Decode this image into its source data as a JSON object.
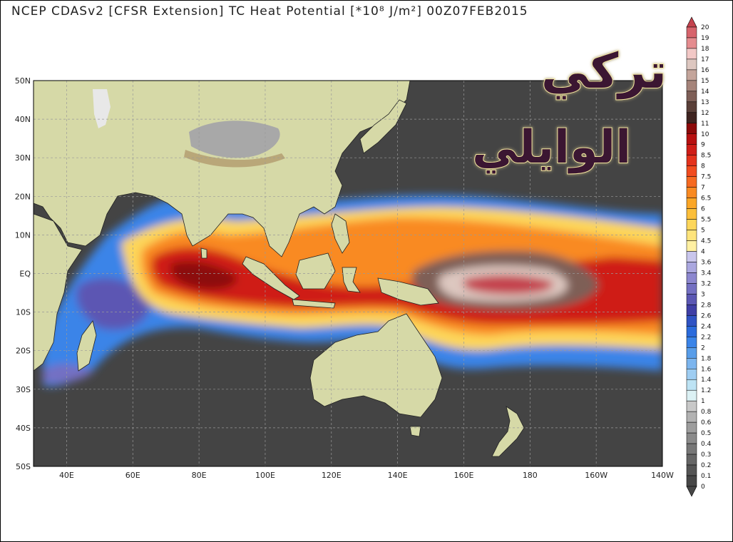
{
  "title": "NCEP CDASv2 [CFSR Extension] TC Heat Potential [*10⁸ J/m²] 00Z07FEB2015",
  "watermark": "تركي الوايلي",
  "lat_ticks": [
    "50N",
    "40N",
    "30N",
    "20N",
    "10N",
    "EQ",
    "10S",
    "20S",
    "30S",
    "40S",
    "50S"
  ],
  "lon_ticks": [
    "40E",
    "60E",
    "80E",
    "100E",
    "120E",
    "140E",
    "160E",
    "180",
    "160W",
    "140W"
  ],
  "colorbar": {
    "labels": [
      "20",
      "19",
      "18",
      "17",
      "16",
      "15",
      "14",
      "13",
      "12",
      "11",
      "10",
      "9",
      "8.5",
      "8",
      "7.5",
      "7",
      "6.5",
      "6",
      "5.5",
      "5",
      "4.5",
      "4",
      "3.6",
      "3.4",
      "3.2",
      "3",
      "2.8",
      "2.6",
      "2.4",
      "2.2",
      "2",
      "1.8",
      "1.6",
      "1.4",
      "1.2",
      "1",
      "0.8",
      "0.6",
      "0.5",
      "0.4",
      "0.3",
      "0.2",
      "0.1",
      "0"
    ],
    "colors": [
      "#c4434e",
      "#d7646c",
      "#e58c8f",
      "#f2c8c6",
      "#ddc7c0",
      "#c4a59b",
      "#a5847a",
      "#7e5f57",
      "#5a3f38",
      "#3f2420",
      "#8c0a0a",
      "#b71010",
      "#cf1d17",
      "#e4321c",
      "#f14c1f",
      "#f66a21",
      "#f98a22",
      "#fba626",
      "#fcbf3a",
      "#fdd65a",
      "#fee47c",
      "#fff0a2",
      "#c9c6ec",
      "#aaa7df",
      "#8c87cf",
      "#7470c2",
      "#5b57b3",
      "#3f3fa6",
      "#2f53c4",
      "#2b6bdc",
      "#3a84e8",
      "#589de9",
      "#7cb5ee",
      "#9ecdf2",
      "#bde3f4",
      "#dcf1f4",
      "#c8c8c8",
      "#b2b2b2",
      "#9d9d9d",
      "#8a8a8a",
      "#777777",
      "#666666",
      "#555555",
      "#474747"
    ]
  },
  "colors": {
    "ocean": "#444444",
    "land": "#d6d9a7",
    "mountain": "#b9a779",
    "snow": "#e8e8e8",
    "plateau": "#a8a8a8"
  }
}
